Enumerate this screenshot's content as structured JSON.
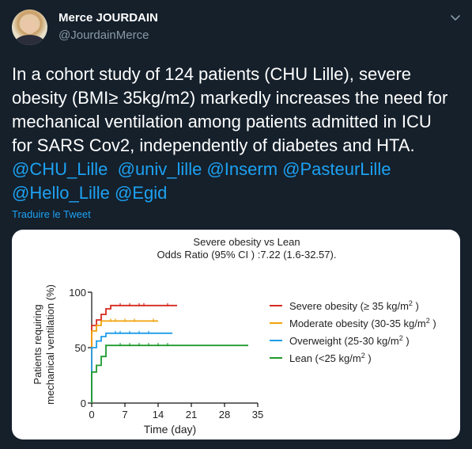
{
  "tweet": {
    "author_name": "Merce JOURDAIN",
    "author_handle": "@JourdainMerce",
    "text_line1": "In a cohort study of 124 patients (CHU Lille), severe",
    "text_line2": "obesity (BMI≥ 35kg/m2) markedly increases the need for",
    "text_line3": "mechanical ventilation among patients admitted in ICU",
    "text_line4": "for SARS Cov2, independently of diabetes and HTA.",
    "mentions": [
      "@CHU_Lille",
      "@univ_lille",
      "@Inserm",
      "@PasteurLille",
      "@Hello_Lille",
      "@Egid"
    ],
    "translate_label": "Traduire le Tweet",
    "icons": {
      "avatar": "avatar-photo",
      "menu": "chevron-down-icon"
    }
  },
  "colors": {
    "background": "#15202b",
    "text": "#ffffff",
    "muted": "#8899a6",
    "link": "#1da1f2"
  },
  "chart_data": {
    "type": "line",
    "title": "Severe obesity vs Lean",
    "subtitle": "Odds Ratio (95% CI ) :7.22 (1.6-32.57).",
    "xlabel": "Time (day)",
    "ylabel_line1": "Patients requiring",
    "ylabel_line2": "mechanical ventilation (%)",
    "xlim": [
      0,
      35
    ],
    "ylim": [
      0,
      100
    ],
    "x_ticks": [
      "0",
      "7",
      "14",
      "21",
      "28",
      "35"
    ],
    "x_tick_values": [
      0,
      7,
      14,
      21,
      28,
      35
    ],
    "y_ticks": [
      "0",
      "50",
      "100"
    ],
    "y_tick_values": [
      0,
      50,
      100
    ],
    "legend_position": "right",
    "series": [
      {
        "name": "Severe obesity (≥ 35 kg/m",
        "sup": "2",
        "suffix": " )",
        "color": "#d62a1e",
        "steps": [
          [
            0,
            0
          ],
          [
            0,
            70
          ],
          [
            1,
            70
          ],
          [
            1,
            75
          ],
          [
            2,
            75
          ],
          [
            2,
            80
          ],
          [
            3,
            80
          ],
          [
            3,
            85
          ],
          [
            4,
            85
          ],
          [
            4,
            88
          ],
          [
            18,
            88
          ]
        ],
        "censors": [
          6,
          8,
          10,
          11,
          16
        ]
      },
      {
        "name": "Moderate obesity (30-35 kg/m",
        "sup": "2",
        "suffix": " )",
        "color": "#f0a30a",
        "steps": [
          [
            0,
            0
          ],
          [
            0,
            65
          ],
          [
            1,
            65
          ],
          [
            1,
            70
          ],
          [
            2,
            70
          ],
          [
            2,
            74
          ],
          [
            14,
            74
          ]
        ],
        "censors": [
          4,
          5,
          7,
          9,
          13
        ]
      },
      {
        "name": "Overweight (25-30 kg/m",
        "sup": "2",
        "suffix": " )",
        "color": "#1e9ce8",
        "steps": [
          [
            0,
            0
          ],
          [
            0,
            50
          ],
          [
            1,
            50
          ],
          [
            1,
            56
          ],
          [
            2,
            56
          ],
          [
            2,
            60
          ],
          [
            3,
            60
          ],
          [
            3,
            63
          ],
          [
            17,
            63
          ]
        ],
        "censors": [
          5,
          6,
          8,
          10,
          12
        ]
      },
      {
        "name": "Lean (<25 kg/m",
        "sup": "2",
        "suffix": " )",
        "color": "#1f9a2e",
        "steps": [
          [
            0,
            0
          ],
          [
            0,
            28
          ],
          [
            1,
            28
          ],
          [
            1,
            34
          ],
          [
            2,
            34
          ],
          [
            2,
            42
          ],
          [
            3,
            42
          ],
          [
            3,
            52
          ],
          [
            33,
            52
          ]
        ],
        "censors": [
          6,
          8,
          10,
          12,
          14,
          16
        ]
      }
    ]
  }
}
